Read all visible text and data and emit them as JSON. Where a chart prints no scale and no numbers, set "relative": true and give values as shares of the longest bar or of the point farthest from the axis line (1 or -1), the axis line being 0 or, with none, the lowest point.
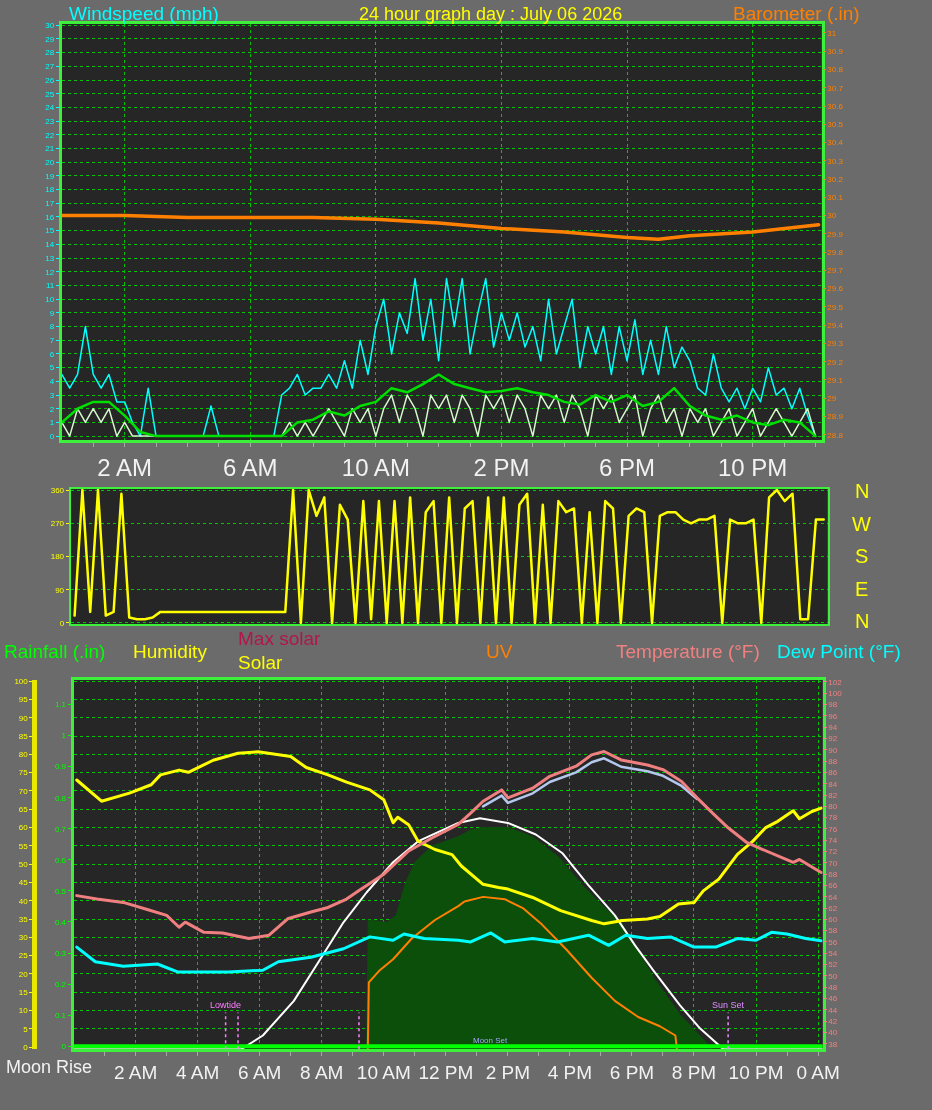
{
  "chart_data": [
    {
      "type": "line",
      "title": "24 hour graph day : July 06 2026",
      "ylabel": "Windspeed (mph)",
      "y2label": "Barometer (.in)",
      "x": [
        "2026-07-06T00:00",
        "2026-07-06T00:15",
        "2026-07-06T00:30",
        "2026-07-06T00:45",
        "2026-07-06T01:00",
        "2026-07-06T01:15",
        "2026-07-06T01:30",
        "2026-07-06T01:45",
        "2026-07-06T02:00",
        "2026-07-06T02:15",
        "2026-07-06T02:30",
        "2026-07-06T02:45",
        "2026-07-06T03:00",
        "2026-07-06T03:15",
        "2026-07-06T03:30",
        "2026-07-06T03:45",
        "2026-07-06T04:00",
        "2026-07-06T04:15",
        "2026-07-06T04:30",
        "2026-07-06T04:45",
        "2026-07-06T05:00",
        "2026-07-06T05:15",
        "2026-07-06T05:30",
        "2026-07-06T05:45",
        "2026-07-06T06:00",
        "2026-07-06T06:15",
        "2026-07-06T06:30",
        "2026-07-06T06:45",
        "2026-07-06T07:00",
        "2026-07-06T07:15",
        "2026-07-06T07:30",
        "2026-07-06T07:45",
        "2026-07-06T08:00",
        "2026-07-06T08:15",
        "2026-07-06T08:30",
        "2026-07-06T08:45",
        "2026-07-06T09:00",
        "2026-07-06T09:15",
        "2026-07-06T09:30",
        "2026-07-06T09:45",
        "2026-07-06T10:00",
        "2026-07-06T10:15",
        "2026-07-06T10:30",
        "2026-07-06T10:45",
        "2026-07-06T11:00",
        "2026-07-06T11:15",
        "2026-07-06T11:30",
        "2026-07-06T11:45",
        "2026-07-06T12:00",
        "2026-07-06T12:15",
        "2026-07-06T12:30",
        "2026-07-06T12:45",
        "2026-07-06T13:00",
        "2026-07-06T13:15",
        "2026-07-06T13:30",
        "2026-07-06T13:45",
        "2026-07-06T14:00",
        "2026-07-06T14:15",
        "2026-07-06T14:30",
        "2026-07-06T14:45",
        "2026-07-06T15:00",
        "2026-07-06T15:15",
        "2026-07-06T15:30",
        "2026-07-06T15:45",
        "2026-07-06T16:00",
        "2026-07-06T16:15",
        "2026-07-06T16:30",
        "2026-07-06T16:45",
        "2026-07-06T17:00",
        "2026-07-06T17:15",
        "2026-07-06T17:30",
        "2026-07-06T17:45",
        "2026-07-06T18:00",
        "2026-07-06T18:15",
        "2026-07-06T18:30",
        "2026-07-06T18:45",
        "2026-07-06T19:00",
        "2026-07-06T19:15",
        "2026-07-06T19:30",
        "2026-07-06T19:45",
        "2026-07-06T20:00",
        "2026-07-06T20:15",
        "2026-07-06T20:30",
        "2026-07-06T20:45",
        "2026-07-06T21:00",
        "2026-07-06T21:15",
        "2026-07-06T21:30",
        "2026-07-06T21:45",
        "2026-07-06T22:00",
        "2026-07-06T22:15",
        "2026-07-06T22:30",
        "2026-07-06T22:45",
        "2026-07-06T23:00",
        "2026-07-06T23:15",
        "2026-07-06T23:30",
        "2026-07-06T23:45",
        "2026-07-07T00:00"
      ],
      "xlim": [
        "2026-07-06T00:00",
        "2026-07-07T00:12"
      ],
      "xticks": [
        {
          "value": "2026-07-06T01:00",
          "label": null
        },
        {
          "value": "2026-07-06T02:00",
          "label": "2 AM"
        },
        {
          "value": "2026-07-06T03:00",
          "label": null
        },
        {
          "value": "2026-07-06T04:00",
          "label": null
        },
        {
          "value": "2026-07-06T05:00",
          "label": null
        },
        {
          "value": "2026-07-06T06:00",
          "label": "6 AM"
        },
        {
          "value": "2026-07-06T07:00",
          "label": null
        },
        {
          "value": "2026-07-06T08:00",
          "label": null
        },
        {
          "value": "2026-07-06T09:00",
          "label": null
        },
        {
          "value": "2026-07-06T10:00",
          "label": "10 AM"
        },
        {
          "value": "2026-07-06T11:00",
          "label": null
        },
        {
          "value": "2026-07-06T12:00",
          "label": null
        },
        {
          "value": "2026-07-06T13:00",
          "label": null
        },
        {
          "value": "2026-07-06T14:00",
          "label": "2 PM"
        },
        {
          "value": "2026-07-06T15:00",
          "label": null
        },
        {
          "value": "2026-07-06T16:00",
          "label": null
        },
        {
          "value": "2026-07-06T17:00",
          "label": null
        },
        {
          "value": "2026-07-06T18:00",
          "label": "6 PM"
        },
        {
          "value": "2026-07-06T19:00",
          "label": null
        },
        {
          "value": "2026-07-06T20:00",
          "label": null
        },
        {
          "value": "2026-07-06T21:00",
          "label": null
        },
        {
          "value": "2026-07-06T22:00",
          "label": "10 PM"
        },
        {
          "value": "2026-07-06T23:00",
          "label": null
        },
        {
          "value": "2026-07-07T00:00",
          "label": null
        }
      ],
      "ylim": [
        -0.3,
        30.1
      ],
      "yticks": [
        0,
        1,
        2,
        3,
        4,
        5,
        6,
        7,
        8,
        9,
        10,
        11,
        12,
        13,
        14,
        15,
        16,
        17,
        18,
        19,
        20,
        21,
        22,
        23,
        24,
        25,
        26,
        27,
        28,
        29,
        30
      ],
      "y2lim": [
        28.77,
        31.05
      ],
      "y2ticks": [
        28.8,
        28.9,
        29,
        29.1,
        29.2,
        29.3,
        29.4,
        29.5,
        29.6,
        29.7,
        29.8,
        29.9,
        30,
        30.1,
        30.2,
        30.3,
        30.4,
        30.5,
        30.6,
        30.7,
        30.8,
        30.9,
        31
      ],
      "grid": true,
      "series": [
        {
          "color": "#00ffff",
          "values": [
            4.5,
            3.5,
            4.5,
            8,
            4.5,
            3.5,
            4.5,
            2.5,
            2.5,
            1,
            0,
            3.5,
            0,
            0,
            0,
            0,
            0,
            0,
            0,
            2.2,
            0,
            0,
            0,
            0,
            0,
            0,
            0,
            0,
            3,
            3.5,
            4.5,
            3,
            3.5,
            3.5,
            4.5,
            3.5,
            5.5,
            3.5,
            7,
            4.5,
            8,
            10,
            6,
            9,
            7.5,
            11.5,
            7,
            10,
            5.5,
            11.5,
            8,
            11.5,
            6,
            9,
            11.5,
            6.5,
            9,
            7,
            9,
            6.5,
            8,
            5.5,
            10,
            6,
            8,
            10,
            5,
            8,
            6,
            8,
            4.5,
            8,
            5.5,
            8.5,
            4.5,
            7,
            4.5,
            8,
            5,
            6.5,
            5.5,
            3.5,
            3,
            6,
            3.5,
            2.5,
            3.5,
            2,
            3.5,
            2.5,
            5,
            3,
            3.5,
            2,
            3.5,
            1.5,
            0
          ]
        },
        {
          "color": "#d4f8cc",
          "values": [
            1,
            0,
            2,
            1,
            2,
            1,
            2,
            0,
            1,
            0,
            0,
            0,
            0,
            0,
            0,
            0,
            0,
            0,
            0,
            0,
            0,
            0,
            0,
            0,
            0,
            0,
            0,
            0,
            0,
            1,
            0,
            1,
            0,
            1,
            2,
            1,
            0,
            2,
            1,
            2,
            0,
            2,
            3,
            1,
            3,
            2,
            0,
            3,
            2,
            3,
            1,
            3,
            2,
            0,
            3,
            2,
            3,
            1,
            3,
            2,
            0,
            3,
            2,
            3,
            1,
            3,
            2,
            0,
            3,
            2,
            3,
            1,
            2,
            3,
            0,
            2,
            3,
            1,
            2,
            0,
            2,
            1,
            2,
            0,
            1,
            2,
            0,
            1,
            2,
            0,
            1,
            2,
            1,
            0,
            1,
            2,
            0
          ]
        },
        {
          "color": "#00e000",
          "x": [
            "2026-07-06T00:00",
            "2026-07-06T00:30",
            "2026-07-06T01:00",
            "2026-07-06T01:30",
            "2026-07-06T02:00",
            "2026-07-06T02:30",
            "2026-07-06T03:00",
            "2026-07-06T03:30",
            "2026-07-06T04:00",
            "2026-07-06T04:30",
            "2026-07-06T05:00",
            "2026-07-06T05:30",
            "2026-07-06T06:00",
            "2026-07-06T06:30",
            "2026-07-06T07:00",
            "2026-07-06T07:30",
            "2026-07-06T08:00",
            "2026-07-06T08:30",
            "2026-07-06T09:00",
            "2026-07-06T09:30",
            "2026-07-06T10:00",
            "2026-07-06T10:30",
            "2026-07-06T11:00",
            "2026-07-06T11:30",
            "2026-07-06T12:00",
            "2026-07-06T12:30",
            "2026-07-06T13:00",
            "2026-07-06T13:30",
            "2026-07-06T14:00",
            "2026-07-06T14:30",
            "2026-07-06T15:00",
            "2026-07-06T15:30",
            "2026-07-06T16:00",
            "2026-07-06T16:30",
            "2026-07-06T17:00",
            "2026-07-06T17:30",
            "2026-07-06T18:00",
            "2026-07-06T18:30",
            "2026-07-06T19:00",
            "2026-07-06T19:30",
            "2026-07-06T20:00",
            "2026-07-06T20:30",
            "2026-07-06T21:00",
            "2026-07-06T21:30",
            "2026-07-06T22:00",
            "2026-07-06T22:30",
            "2026-07-06T23:00",
            "2026-07-06T23:30",
            "2026-07-07T00:00"
          ],
          "values": [
            1,
            2,
            2.5,
            2.5,
            1.5,
            0.3,
            0,
            0,
            0,
            0,
            0,
            0,
            0,
            0,
            0,
            1,
            1.2,
            1.8,
            1.5,
            2.2,
            2.5,
            3.5,
            3.2,
            3.8,
            4.5,
            3.8,
            3.5,
            3.2,
            3.3,
            3.5,
            3.2,
            3,
            2.5,
            2.3,
            3,
            2.5,
            3,
            2.2,
            2.5,
            3.5,
            2.2,
            1.5,
            1.2,
            1.5,
            1,
            0.8,
            1.2,
            1,
            0
          ]
        },
        {
          "color": "#ff8000",
          "axis": "y2",
          "x": [
            "2026-07-06T00:00",
            "2026-07-06T02:00",
            "2026-07-06T04:00",
            "2026-07-06T06:00",
            "2026-07-06T08:00",
            "2026-07-06T10:00",
            "2026-07-06T12:00",
            "2026-07-06T14:00",
            "2026-07-06T16:00",
            "2026-07-06T18:00",
            "2026-07-06T19:00",
            "2026-07-06T20:00",
            "2026-07-06T22:00",
            "2026-07-07T00:06"
          ],
          "values": [
            30,
            30,
            29.99,
            29.99,
            29.99,
            29.98,
            29.96,
            29.93,
            29.91,
            29.88,
            29.87,
            29.89,
            29.91,
            29.95
          ]
        }
      ]
    },
    {
      "type": "line",
      "categories": [
        null,
        null,
        null,
        null,
        null,
        null,
        null,
        null,
        null,
        null,
        null,
        null,
        null,
        null,
        null,
        null,
        null,
        null,
        null,
        null,
        null,
        null,
        null,
        null,
        null,
        null,
        null,
        null,
        null,
        null,
        null,
        null,
        null,
        null,
        null,
        null,
        null,
        null,
        null,
        null,
        null,
        null,
        null,
        null,
        null,
        null,
        null,
        null,
        null,
        null,
        null,
        null,
        null,
        null,
        null,
        null,
        null,
        null,
        null,
        null,
        null,
        null,
        null,
        null,
        null,
        null,
        null,
        null,
        null,
        null,
        null,
        null,
        null,
        null,
        null,
        null,
        null,
        null,
        null,
        null,
        null,
        null,
        null,
        null,
        null,
        null,
        null,
        null,
        null,
        null,
        null,
        null,
        null,
        null,
        null,
        null,
        null
      ],
      "ylim": [
        -3,
        363
      ],
      "yticks": [
        0,
        90,
        180,
        270,
        360
      ],
      "grid": "y",
      "tick_labels": "y",
      "series": [
        {
          "color": "#ffff00",
          "values": [
            20,
            360,
            30,
            360,
            20,
            30,
            350,
            15,
            10,
            10,
            15,
            30,
            30,
            30,
            30,
            30,
            30,
            30,
            30,
            30,
            30,
            30,
            30,
            30,
            30,
            30,
            30,
            30,
            360,
            0,
            360,
            290,
            340,
            0,
            320,
            280,
            0,
            330,
            10,
            330,
            0,
            330,
            0,
            340,
            0,
            300,
            330,
            0,
            340,
            0,
            310,
            330,
            0,
            340,
            0,
            340,
            0,
            320,
            350,
            0,
            320,
            0,
            330,
            300,
            310,
            0,
            300,
            0,
            330,
            310,
            0,
            290,
            310,
            300,
            0,
            290,
            300,
            300,
            280,
            270,
            280,
            280,
            290,
            0,
            280,
            270,
            270,
            280,
            0,
            340,
            360,
            330,
            350,
            10,
            10,
            280,
            280
          ]
        }
      ],
      "annotations": [
        "N",
        "W",
        "S",
        "E",
        "N"
      ]
    },
    {
      "type": "line",
      "ylabel": "Humidity",
      "y2label": "Temperature (°F)",
      "y3label": "Rainfall (.in)",
      "xlim": [
        "2026-07-06T00:00",
        "2026-07-07T00:09"
      ],
      "xticks": [
        {
          "value": "2026-07-06T01:00",
          "label": null
        },
        {
          "value": "2026-07-06T02:00",
          "label": "2 AM"
        },
        {
          "value": "2026-07-06T03:00",
          "label": null
        },
        {
          "value": "2026-07-06T04:00",
          "label": "4 AM"
        },
        {
          "value": "2026-07-06T05:00",
          "label": null
        },
        {
          "value": "2026-07-06T06:00",
          "label": "6 AM"
        },
        {
          "value": "2026-07-06T07:00",
          "label": null
        },
        {
          "value": "2026-07-06T08:00",
          "label": "8 AM"
        },
        {
          "value": "2026-07-06T09:00",
          "label": null
        },
        {
          "value": "2026-07-06T10:00",
          "label": "10 AM"
        },
        {
          "value": "2026-07-06T11:00",
          "label": null
        },
        {
          "value": "2026-07-06T12:00",
          "label": "12 PM"
        },
        {
          "value": "2026-07-06T13:00",
          "label": null
        },
        {
          "value": "2026-07-06T14:00",
          "label": "2 PM"
        },
        {
          "value": "2026-07-06T15:00",
          "label": null
        },
        {
          "value": "2026-07-06T16:00",
          "label": "4 PM"
        },
        {
          "value": "2026-07-06T17:00",
          "label": null
        },
        {
          "value": "2026-07-06T18:00",
          "label": "6 PM"
        },
        {
          "value": "2026-07-06T19:00",
          "label": null
        },
        {
          "value": "2026-07-06T20:00",
          "label": "8 PM"
        },
        {
          "value": "2026-07-06T21:00",
          "label": null
        },
        {
          "value": "2026-07-06T22:00",
          "label": "10 PM"
        },
        {
          "value": "2026-07-06T23:00",
          "label": null
        },
        {
          "value": "2026-07-07T00:00",
          "label": "0 AM"
        }
      ],
      "ylim": [
        -0.6,
        100.4
      ],
      "yticks": [
        0,
        5,
        10,
        15,
        20,
        25,
        30,
        35,
        40,
        45,
        50,
        55,
        60,
        65,
        70,
        75,
        80,
        85,
        90,
        95,
        100
      ],
      "y2lim": [
        37,
        102.4
      ],
      "y2ticks": [
        38,
        40,
        42,
        44,
        46,
        48,
        50,
        52,
        54,
        56,
        58,
        60,
        62,
        64,
        66,
        68,
        70,
        72,
        74,
        76,
        78,
        80,
        82,
        84,
        86,
        88,
        90,
        92,
        94,
        96,
        98,
        100,
        102
      ],
      "y3lim": [
        -0.01,
        1.18
      ],
      "y3ticks": [
        0,
        0.1,
        0.2,
        0.3,
        0.4,
        0.5,
        0.6,
        0.7,
        0.8,
        0.9,
        1,
        1.1
      ],
      "grid": true,
      "series": [
        {
          "color": "#00ff00",
          "axis": "y3",
          "x": [
            "2026-07-06T00:00",
            "2026-07-07T00:09"
          ],
          "values": [
            0,
            0
          ]
        },
        {
          "color": "#ffff00",
          "x": [
            "2026-07-06T00:06",
            "2026-07-06T00:54",
            "2026-07-06T01:48",
            "2026-07-06T02:30",
            "2026-07-06T02:48",
            "2026-07-06T03:24",
            "2026-07-06T03:42",
            "2026-07-06T04:30",
            "2026-07-06T05:18",
            "2026-07-06T05:57",
            "2026-07-06T07:00",
            "2026-07-06T07:30",
            "2026-07-06T08:12",
            "2026-07-06T08:48",
            "2026-07-06T09:33",
            "2026-07-06T10:00",
            "2026-07-06T10:18",
            "2026-07-06T10:27",
            "2026-07-06T10:48",
            "2026-07-06T11:06",
            "2026-07-06T11:39",
            "2026-07-06T12:12",
            "2026-07-06T12:30",
            "2026-07-06T13:12",
            "2026-07-06T13:42",
            "2026-07-06T14:00",
            "2026-07-06T14:48",
            "2026-07-06T15:42",
            "2026-07-06T16:42",
            "2026-07-06T17:06",
            "2026-07-06T17:42",
            "2026-07-06T18:30",
            "2026-07-06T18:54",
            "2026-07-06T19:30",
            "2026-07-06T20:00",
            "2026-07-06T20:18",
            "2026-07-06T20:48",
            "2026-07-06T21:24",
            "2026-07-06T21:54",
            "2026-07-06T22:18",
            "2026-07-06T22:42",
            "2026-07-06T23:12",
            "2026-07-06T23:24",
            "2026-07-06T23:48",
            "2026-07-07T00:06"
          ],
          "values": [
            73,
            67.2,
            69.4,
            71.7,
            74.4,
            75.7,
            75.1,
            78.4,
            80.3,
            80.7,
            79.4,
            76.4,
            74.4,
            72.4,
            70.3,
            67.6,
            61.3,
            62.8,
            60.8,
            56.3,
            54,
            52.6,
            49.5,
            44.5,
            43.6,
            43.2,
            40.9,
            37.3,
            34.6,
            33.7,
            34.6,
            35,
            35.7,
            39.1,
            39.5,
            42.7,
            45.9,
            52.7,
            56.3,
            59.9,
            61.7,
            64.6,
            62.4,
            64.4,
            65.3
          ]
        },
        {
          "color": "#b4c8ee",
          "axis": "y2",
          "x": [
            "2026-07-06T13:12",
            "2026-07-06T13:48",
            "2026-07-06T14:00",
            "2026-07-06T14:48",
            "2026-07-06T15:21",
            "2026-07-06T16:12",
            "2026-07-06T16:42",
            "2026-07-06T17:06",
            "2026-07-06T17:39",
            "2026-07-06T18:30",
            "2026-07-06T19:00",
            "2026-07-06T19:36",
            "2026-07-06T20:06"
          ],
          "values": [
            80,
            81.9,
            80.6,
            82.3,
            84.3,
            86,
            87.8,
            88.5,
            87,
            86.2,
            85.4,
            83.6,
            81.3
          ]
        },
        {
          "color": "#f08080",
          "axis": "y2",
          "x": [
            "2026-07-06T00:06",
            "2026-07-06T00:45",
            "2026-07-06T01:36",
            "2026-07-06T02:24",
            "2026-07-06T03:00",
            "2026-07-06T03:24",
            "2026-07-06T03:36",
            "2026-07-06T04:12",
            "2026-07-06T04:48",
            "2026-07-06T05:39",
            "2026-07-06T06:18",
            "2026-07-06T06:54",
            "2026-07-06T07:39",
            "2026-07-06T08:12",
            "2026-07-06T08:48",
            "2026-07-06T09:12",
            "2026-07-06T10:00",
            "2026-07-06T10:48",
            "2026-07-06T11:33",
            "2026-07-06T12:24",
            "2026-07-06T12:48",
            "2026-07-06T13:12",
            "2026-07-06T13:48",
            "2026-07-06T14:00",
            "2026-07-06T14:48",
            "2026-07-06T15:21",
            "2026-07-06T16:12",
            "2026-07-06T16:42",
            "2026-07-06T17:06",
            "2026-07-06T17:39",
            "2026-07-06T18:30",
            "2026-07-06T19:00",
            "2026-07-06T19:36",
            "2026-07-06T20:06",
            "2026-07-06T20:36",
            "2026-07-06T21:06",
            "2026-07-06T21:42",
            "2026-07-06T22:12",
            "2026-07-06T23:12",
            "2026-07-06T23:24",
            "2026-07-07T00:06"
          ],
          "values": [
            64.2,
            63.6,
            63,
            61.7,
            60.7,
            58.6,
            59.5,
            57.7,
            57.6,
            56.6,
            57.2,
            60.1,
            61.3,
            62.1,
            63.6,
            65.1,
            68,
            72.1,
            74.4,
            76.8,
            78.8,
            80.9,
            82.9,
            81.5,
            83.2,
            85.3,
            87.1,
            89.1,
            89.7,
            88.2,
            87.3,
            86.5,
            84.4,
            81.5,
            78.8,
            76.2,
            73.6,
            72.4,
            70.1,
            70.6,
            68.3
          ]
        },
        {
          "name": "Dew Point (°F)",
          "color": "#00ffff",
          "axis": "y2",
          "x": [
            "2026-07-06T00:06",
            "2026-07-06T00:42",
            "2026-07-06T01:36",
            "2026-07-06T02:42",
            "2026-07-06T03:21",
            "2026-07-06T04:12",
            "2026-07-06T05:00",
            "2026-07-06T06:06",
            "2026-07-06T06:36",
            "2026-07-06T07:39",
            "2026-07-06T08:42",
            "2026-07-06T09:33",
            "2026-07-06T10:18",
            "2026-07-06T10:39",
            "2026-07-06T11:18",
            "2026-07-06T12:24",
            "2026-07-06T12:48",
            "2026-07-06T13:27",
            "2026-07-06T13:54",
            "2026-07-06T14:48",
            "2026-07-06T15:36",
            "2026-07-06T16:36",
            "2026-07-06T17:15",
            "2026-07-06T17:48",
            "2026-07-06T18:30",
            "2026-07-06T19:15",
            "2026-07-06T20:00",
            "2026-07-06T20:42",
            "2026-07-06T21:24",
            "2026-07-06T22:00",
            "2026-07-06T22:30",
            "2026-07-06T23:00",
            "2026-07-06T23:36",
            "2026-07-07T00:06"
          ],
          "values": [
            55.1,
            52.5,
            51.7,
            52.1,
            50.7,
            50.7,
            50.7,
            51,
            52.5,
            53.3,
            54.8,
            56.9,
            56.3,
            57.4,
            56.6,
            56.3,
            56,
            57.6,
            56,
            56.6,
            56,
            57.2,
            55.4,
            57.2,
            56.6,
            56.9,
            55.1,
            55.1,
            56.6,
            56.3,
            57.7,
            57.4,
            56.6,
            56.2
          ]
        }
      ],
      "ref_lines": [
        {
          "axis": "x",
          "value": "2026-07-06T04:54",
          "label": "Lowtide",
          "color": "#ff80ff",
          "line_style": "dotted"
        },
        {
          "axis": "x",
          "value": "2026-07-06T05:18",
          "color": "#ff80ff",
          "line_style": "dotted"
        },
        {
          "axis": "x",
          "value": "2026-07-06T09:12",
          "color": "#ff80ff",
          "line_style": "dotted"
        },
        {
          "axis": "x",
          "value": "2026-07-06T21:06",
          "label": "Sun Set",
          "color": "#e090ff",
          "line_style": "dotted"
        }
      ],
      "annotations": [
        "Moon Rise",
        {
          "text": "Moon Set",
          "x": "2026-07-06T13:27",
          "y": 0
        }
      ]
    },
    {
      "type": "line",
      "relative": true,
      "xlim": [
        "2026-07-06T00:00",
        "2026-07-07T00:09"
      ],
      "tick_labels": false,
      "series": [
        {
          "type": "area",
          "color": "#0b4f0b",
          "x": [
            "2026-07-06T05:24",
            "2026-07-06T09:27",
            "2026-07-06T09:30",
            "2026-07-06T10:06",
            "2026-07-06T10:24",
            "2026-07-06T10:42",
            "2026-07-06T11:00",
            "2026-07-06T11:33",
            "2026-07-06T12:24",
            "2026-07-06T12:48",
            "2026-07-06T13:12",
            "2026-07-06T14:00",
            "2026-07-06T14:48",
            "2026-07-06T15:39",
            "2026-07-06T16:24",
            "2026-07-06T17:09",
            "2026-07-06T17:39",
            "2026-07-06T18:06",
            "2026-07-06T18:42",
            "2026-07-06T19:33",
            "2026-07-06T20:24",
            "2026-07-06T20:36"
          ],
          "values": [
            0,
            0.02,
            0.56,
            0.55,
            0.58,
            0.72,
            0.81,
            0.88,
            0.92,
            0.95,
            0.96,
            0.96,
            0.92,
            0.83,
            0.71,
            0.61,
            0.55,
            0.45,
            0.31,
            0.15,
            0.03,
            0
          ]
        },
        {
          "color": "#ffffff",
          "x": [
            "2026-07-06T00:00",
            "2026-07-06T05:24",
            "2026-07-06T06:06",
            "2026-07-06T07:06",
            "2026-07-06T07:57",
            "2026-07-06T08:42",
            "2026-07-06T09:27",
            "2026-07-06T10:18",
            "2026-07-06T11:06",
            "2026-07-06T12:24",
            "2026-07-06T13:06",
            "2026-07-06T14:00",
            "2026-07-06T14:54",
            "2026-07-06T15:45",
            "2026-07-06T16:36",
            "2026-07-06T17:27",
            "2026-07-06T18:06",
            "2026-07-06T18:42",
            "2026-07-06T19:33",
            "2026-07-06T20:12",
            "2026-07-06T20:57",
            "2026-07-07T00:09"
          ],
          "values": [
            0,
            0,
            0.06,
            0.21,
            0.39,
            0.55,
            0.68,
            0.81,
            0.9,
            0.98,
            1,
            0.98,
            0.93,
            0.85,
            0.71,
            0.58,
            0.45,
            0.34,
            0.19,
            0.09,
            0,
            0
          ]
        },
        {
          "name": "UV",
          "color": "#ff8000",
          "x": [
            "2026-07-06T09:29",
            "2026-07-06T09:30",
            "2026-07-06T09:31",
            "2026-07-06T09:51",
            "2026-07-06T10:18",
            "2026-07-06T10:54",
            "2026-07-06T11:39",
            "2026-07-06T12:24",
            "2026-07-06T12:36",
            "2026-07-06T13:12",
            "2026-07-06T13:54",
            "2026-07-06T14:30",
            "2026-07-06T15:06",
            "2026-07-06T15:54",
            "2026-07-06T16:42",
            "2026-07-06T17:27",
            "2026-07-06T18:12",
            "2026-07-06T18:54",
            "2026-07-06T19:24",
            "2026-07-06T19:27"
          ],
          "values": [
            0,
            0.14,
            0.29,
            0.34,
            0.39,
            0.48,
            0.56,
            0.62,
            0.64,
            0.66,
            0.65,
            0.61,
            0.54,
            0.43,
            0.31,
            0.21,
            0.14,
            0.1,
            0.06,
            0
          ]
        }
      ],
      "annotations": [
        "Max solar",
        "Solar"
      ]
    }
  ]
}
